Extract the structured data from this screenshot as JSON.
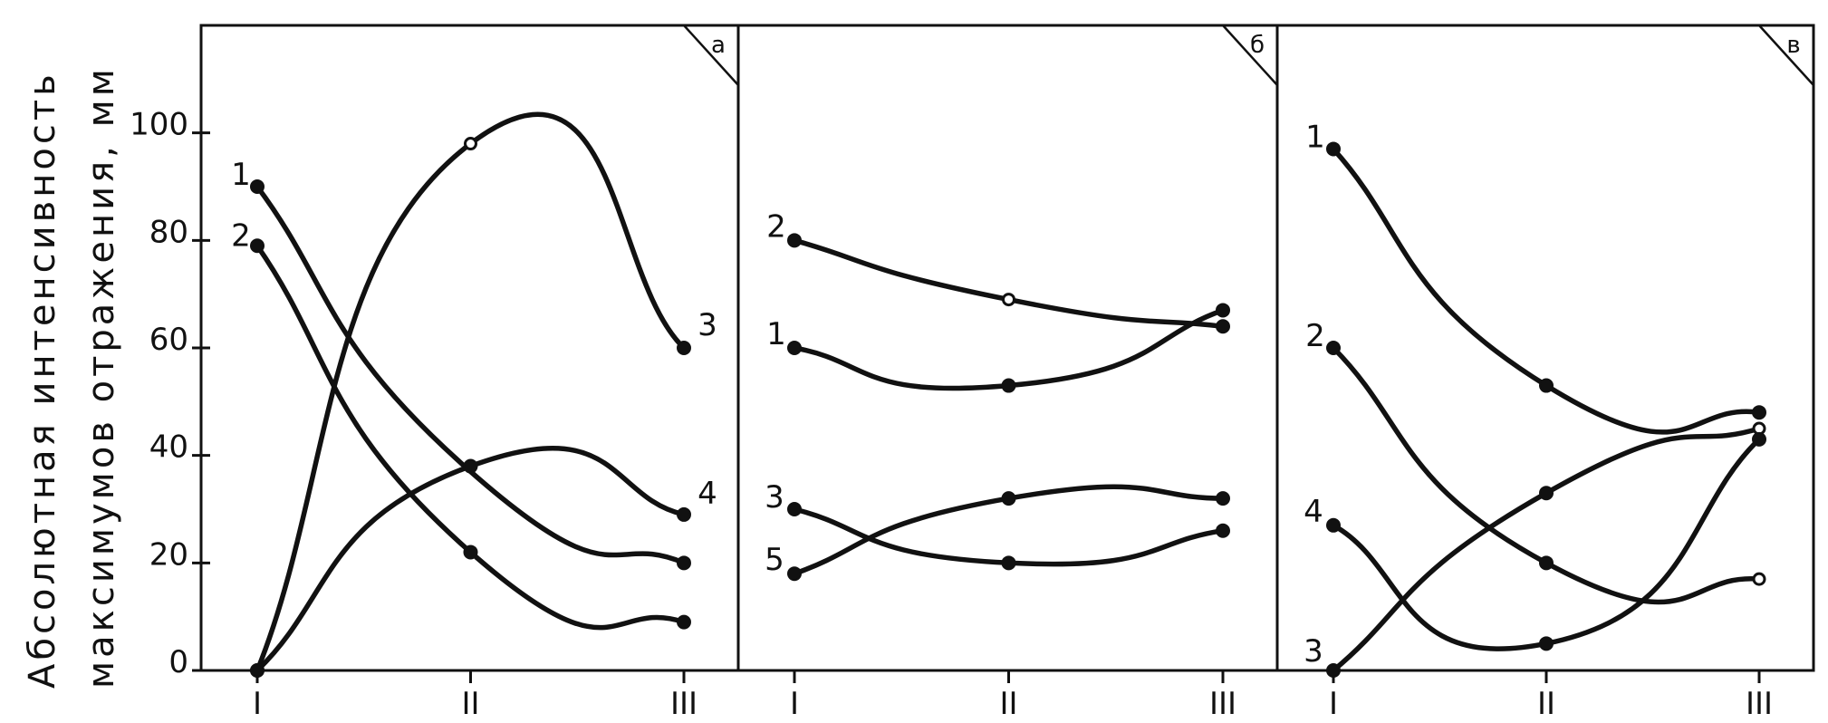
{
  "ylabel_lines": [
    "Абсолютная интенсивность",
    "максимумов отражения, мм"
  ],
  "chart_data": [
    {
      "type": "line",
      "panel_label": "а",
      "categories": [
        "I",
        "II",
        "III"
      ],
      "ylim": [
        0,
        120
      ],
      "yticks": [
        0,
        20,
        40,
        60,
        80,
        100
      ],
      "series": [
        {
          "name": "1",
          "values": [
            90,
            37,
            20
          ],
          "markers": [
            "filled",
            "none",
            "filled"
          ]
        },
        {
          "name": "2",
          "values": [
            79,
            22,
            9
          ],
          "markers": [
            "filled",
            "filled",
            "filled"
          ]
        },
        {
          "name": "3",
          "values": [
            0,
            98,
            60
          ],
          "markers": [
            "filled",
            "open",
            "filled"
          ]
        },
        {
          "name": "4",
          "values": [
            0,
            38,
            29
          ],
          "markers": [
            "filled",
            "filled",
            "filled"
          ]
        }
      ]
    },
    {
      "type": "line",
      "panel_label": "б",
      "categories": [
        "I",
        "II",
        "III"
      ],
      "ylim": [
        0,
        120
      ],
      "series": [
        {
          "name": "1",
          "values": [
            60,
            53,
            67
          ],
          "markers": [
            "filled",
            "filled",
            "filled"
          ]
        },
        {
          "name": "2",
          "values": [
            80,
            69,
            64
          ],
          "markers": [
            "filled",
            "open",
            "filled"
          ]
        },
        {
          "name": "3",
          "values": [
            30,
            20,
            26
          ],
          "markers": [
            "filled",
            "filled",
            "filled"
          ]
        },
        {
          "name": "5",
          "values": [
            18,
            32,
            32
          ],
          "markers": [
            "filled",
            "filled",
            "filled"
          ]
        }
      ]
    },
    {
      "type": "line",
      "panel_label": "в",
      "categories": [
        "I",
        "II",
        "III"
      ],
      "ylim": [
        0,
        120
      ],
      "series": [
        {
          "name": "1",
          "values": [
            97,
            53,
            48
          ],
          "markers": [
            "filled",
            "filled",
            "filled"
          ]
        },
        {
          "name": "2",
          "values": [
            60,
            20,
            17
          ],
          "markers": [
            "filled",
            "filled",
            "open"
          ]
        },
        {
          "name": "3",
          "values": [
            0,
            33,
            45
          ],
          "markers": [
            "filled",
            "filled",
            "open"
          ]
        },
        {
          "name": "4",
          "values": [
            27,
            5,
            43
          ],
          "markers": [
            "filled",
            "filled",
            "filled"
          ]
        }
      ]
    }
  ]
}
